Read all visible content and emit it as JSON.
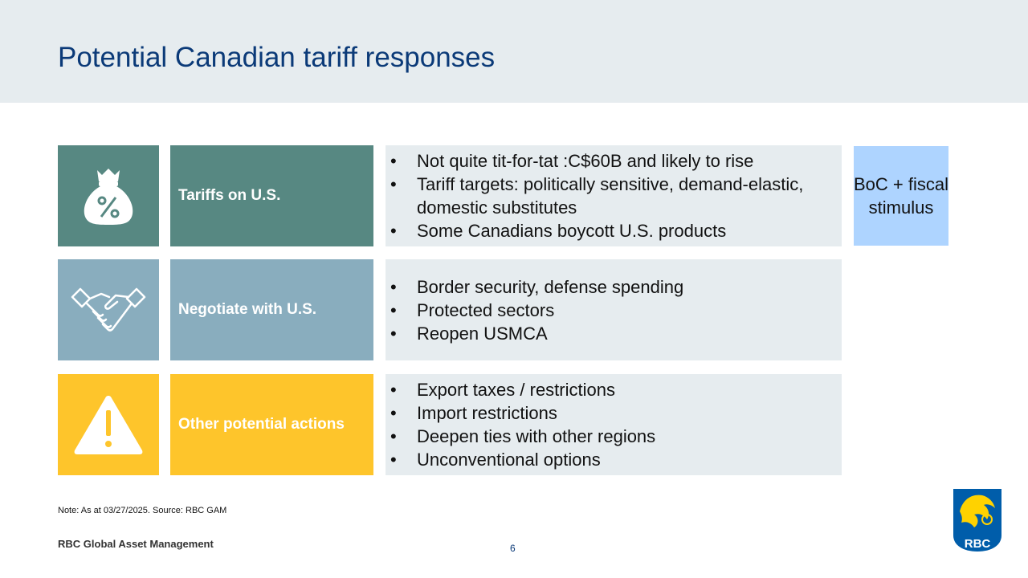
{
  "title": "Potential Canadian tariff responses",
  "rows": [
    {
      "icon": "money-bag-percent-icon",
      "label": "Tariffs on U.S.",
      "bullets": [
        "Not quite tit-for-tat :C$60B and likely to rise",
        "Tariff targets: politically sensitive, demand-elastic, domestic substitutes",
        "Some Canadians boycott U.S. products"
      ]
    },
    {
      "icon": "handshake-icon",
      "label": "Negotiate with U.S.",
      "bullets": [
        "Border security, defense spending",
        "Protected sectors",
        "Reopen USMCA"
      ]
    },
    {
      "icon": "warning-icon",
      "label": "Other potential actions",
      "bullets": [
        "Export taxes / restrictions",
        "Import restrictions",
        "Deepen ties with other regions",
        "Unconventional options"
      ]
    }
  ],
  "side_box": "BoC + fiscal stimulus",
  "note": "Note: As at 03/27/2025. Source: RBC GAM",
  "footer_brand": "RBC Global Asset Management",
  "page_number": "6",
  "logo": {
    "icon": "rbc-lion-shield-logo",
    "text": "RBC"
  },
  "colors": {
    "title": "#0b3a78",
    "header_band": "#e6ecef",
    "row1": "#578882",
    "row2": "#89adbe",
    "row3": "#fec52b",
    "bullet_bg": "#e6ecef",
    "side_box": "#aed4ff",
    "rbc_blue": "#005daa",
    "rbc_gold": "#ffd200"
  }
}
